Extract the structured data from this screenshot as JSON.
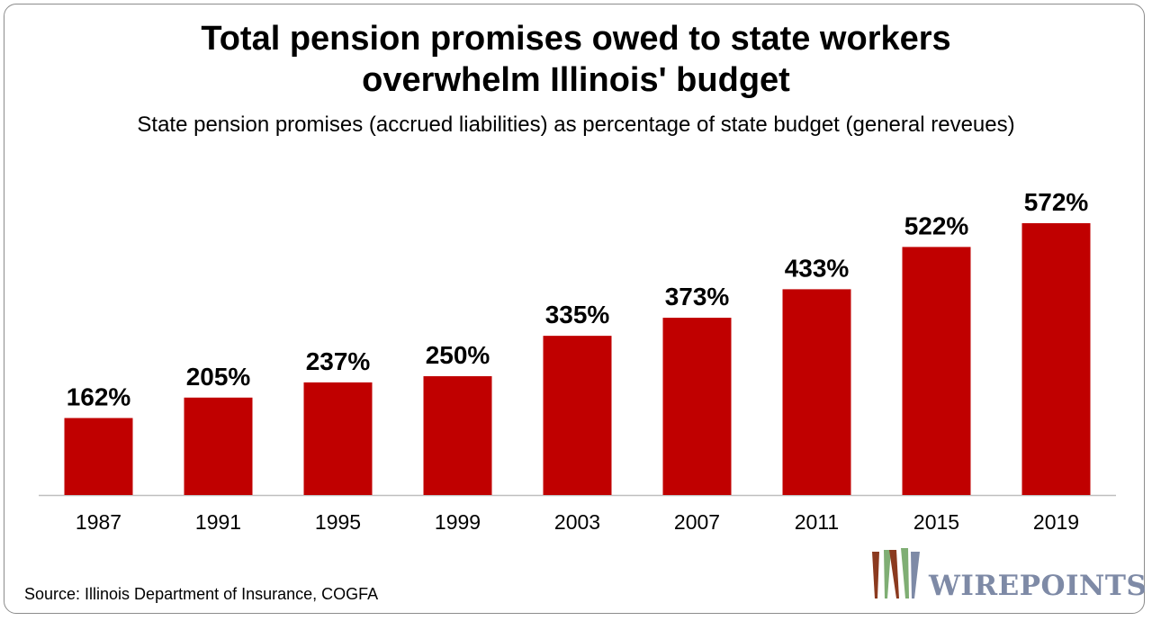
{
  "title_line1": "Total pension promises owed to state workers",
  "title_line2": "overwhelm Illinois' budget",
  "subtitle": "State pension promises (accrued liabilities) as percentage of state budget (general reveues)",
  "source": "Source: Illinois Department of Insurance, COGFA",
  "logo": {
    "text": "WIREPOINTS",
    "colors": {
      "brown": "#8b3a1f",
      "green": "#7fae74",
      "blue": "#7e8aa6"
    }
  },
  "colors": {
    "bar": "#c00000",
    "axis": "#bfbfbf",
    "text": "#000000"
  },
  "chart_data": {
    "type": "bar",
    "title": "Total pension promises owed to state workers overwhelm Illinois' budget",
    "subtitle": "State pension promises (accrued liabilities) as percentage of state budget (general reveues)",
    "categories": [
      "1987",
      "1991",
      "1995",
      "1999",
      "2003",
      "2007",
      "2011",
      "2015",
      "2019"
    ],
    "values": [
      162,
      205,
      237,
      250,
      335,
      373,
      433,
      522,
      572
    ],
    "data_labels": [
      "162%",
      "205%",
      "237%",
      "250%",
      "335%",
      "373%",
      "433%",
      "522%",
      "572%"
    ],
    "unit": "%",
    "ylim": [
      0,
      572
    ],
    "grid": false,
    "legend": "none",
    "xlabel": "",
    "ylabel": ""
  }
}
